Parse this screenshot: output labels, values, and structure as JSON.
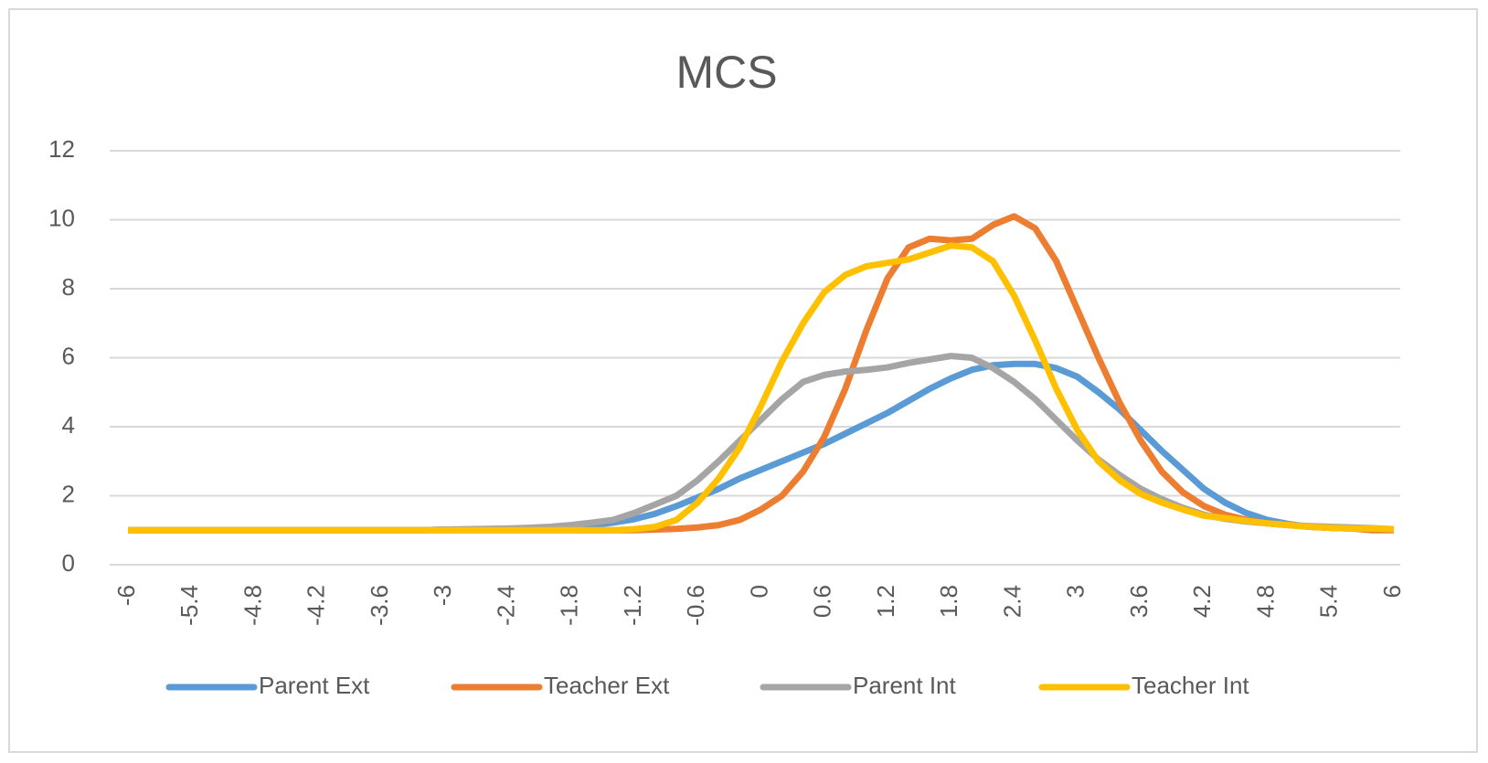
{
  "chart_data": {
    "type": "line",
    "title": "MCS",
    "x": [
      -6,
      -5.8,
      -5.6,
      -5.4,
      -5.2,
      -5,
      -4.8,
      -4.6,
      -4.4,
      -4.2,
      -4,
      -3.8,
      -3.6,
      -3.4,
      -3.2,
      -3,
      -2.8,
      -2.6,
      -2.4,
      -2.2,
      -2,
      -1.8,
      -1.6,
      -1.4,
      -1.2,
      -1,
      -0.8,
      -0.6,
      -0.4,
      -0.2,
      0,
      0.2,
      0.4,
      0.6,
      0.8,
      1,
      1.2,
      1.4,
      1.6,
      1.8,
      2,
      2.2,
      2.4,
      2.6,
      2.8,
      3,
      3.2,
      3.4,
      3.6,
      3.8,
      4,
      4.2,
      4.4,
      4.6,
      4.8,
      5,
      5.2,
      5.4,
      5.6,
      5.8,
      6
    ],
    "series": [
      {
        "name": "Parent Ext",
        "color": "#5b9bd5",
        "values": [
          1,
          1,
          1,
          1,
          1,
          1,
          1,
          1,
          1,
          1,
          1,
          1,
          1,
          1,
          1,
          1.02,
          1.02,
          1.03,
          1.04,
          1.05,
          1.07,
          1.1,
          1.15,
          1.22,
          1.32,
          1.48,
          1.7,
          1.95,
          2.2,
          2.5,
          2.75,
          3,
          3.25,
          3.5,
          3.8,
          4.1,
          4.4,
          4.75,
          5.1,
          5.4,
          5.65,
          5.78,
          5.82,
          5.82,
          5.7,
          5.45,
          5,
          4.5,
          3.9,
          3.3,
          2.75,
          2.2,
          1.8,
          1.5,
          1.3,
          1.18,
          1.1,
          1.07,
          1.05,
          1.03,
          1.02
        ]
      },
      {
        "name": "Teacher Ext",
        "color": "#ed7d31",
        "values": [
          1,
          1,
          1,
          1,
          1,
          1,
          1,
          1,
          1,
          1,
          1,
          1,
          1,
          1,
          1,
          1,
          1,
          1,
          1,
          1,
          1,
          1,
          1,
          1,
          1,
          1.02,
          1.04,
          1.08,
          1.15,
          1.3,
          1.6,
          2,
          2.7,
          3.7,
          5.1,
          6.8,
          8.3,
          9.2,
          9.45,
          9.4,
          9.45,
          9.85,
          10.1,
          9.75,
          8.8,
          7.4,
          6,
          4.7,
          3.6,
          2.7,
          2.1,
          1.7,
          1.45,
          1.3,
          1.2,
          1.15,
          1.1,
          1.07,
          1.05,
          1,
          1
        ]
      },
      {
        "name": "Parent Int",
        "color": "#a5a5a5",
        "values": [
          1,
          1,
          1,
          1,
          1,
          1,
          1,
          1,
          1,
          1,
          1,
          1,
          1,
          1,
          1,
          1.02,
          1.03,
          1.04,
          1.05,
          1.07,
          1.1,
          1.15,
          1.22,
          1.3,
          1.5,
          1.75,
          2,
          2.45,
          3,
          3.6,
          4.2,
          4.8,
          5.3,
          5.5,
          5.6,
          5.65,
          5.72,
          5.85,
          5.95,
          6.05,
          6,
          5.7,
          5.3,
          4.8,
          4.2,
          3.6,
          3.05,
          2.6,
          2.2,
          1.9,
          1.65,
          1.45,
          1.33,
          1.25,
          1.2,
          1.15,
          1.12,
          1.1,
          1.08,
          1.06,
          1.03
        ]
      },
      {
        "name": "Teacher Int",
        "color": "#ffc000",
        "values": [
          1,
          1,
          1,
          1,
          1,
          1,
          1,
          1,
          1,
          1,
          1,
          1,
          1,
          1,
          1,
          1,
          1,
          1,
          1,
          1,
          1,
          1,
          1,
          1,
          1.03,
          1.1,
          1.3,
          1.8,
          2.5,
          3.4,
          4.6,
          5.9,
          7,
          7.9,
          8.4,
          8.65,
          8.75,
          8.85,
          9.05,
          9.25,
          9.2,
          8.8,
          7.8,
          6.5,
          5.1,
          3.9,
          3,
          2.45,
          2.05,
          1.8,
          1.6,
          1.42,
          1.35,
          1.27,
          1.2,
          1.15,
          1.1,
          1.07,
          1.05,
          1.05,
          1.03
        ]
      }
    ],
    "xlim": [
      -6,
      6
    ],
    "xticks": [
      -6,
      -5.4,
      -4.8,
      -4.2,
      -3.6,
      -3,
      -2.4,
      -1.8,
      -1.2,
      -0.6,
      0,
      0.6,
      1.2,
      1.8,
      2.4,
      3,
      3.6,
      4.2,
      4.8,
      5.4,
      6
    ],
    "ylim": [
      0,
      12
    ],
    "yticks": [
      0,
      2,
      4,
      6,
      8,
      10,
      12
    ],
    "grid": true,
    "legend": "bottom"
  }
}
